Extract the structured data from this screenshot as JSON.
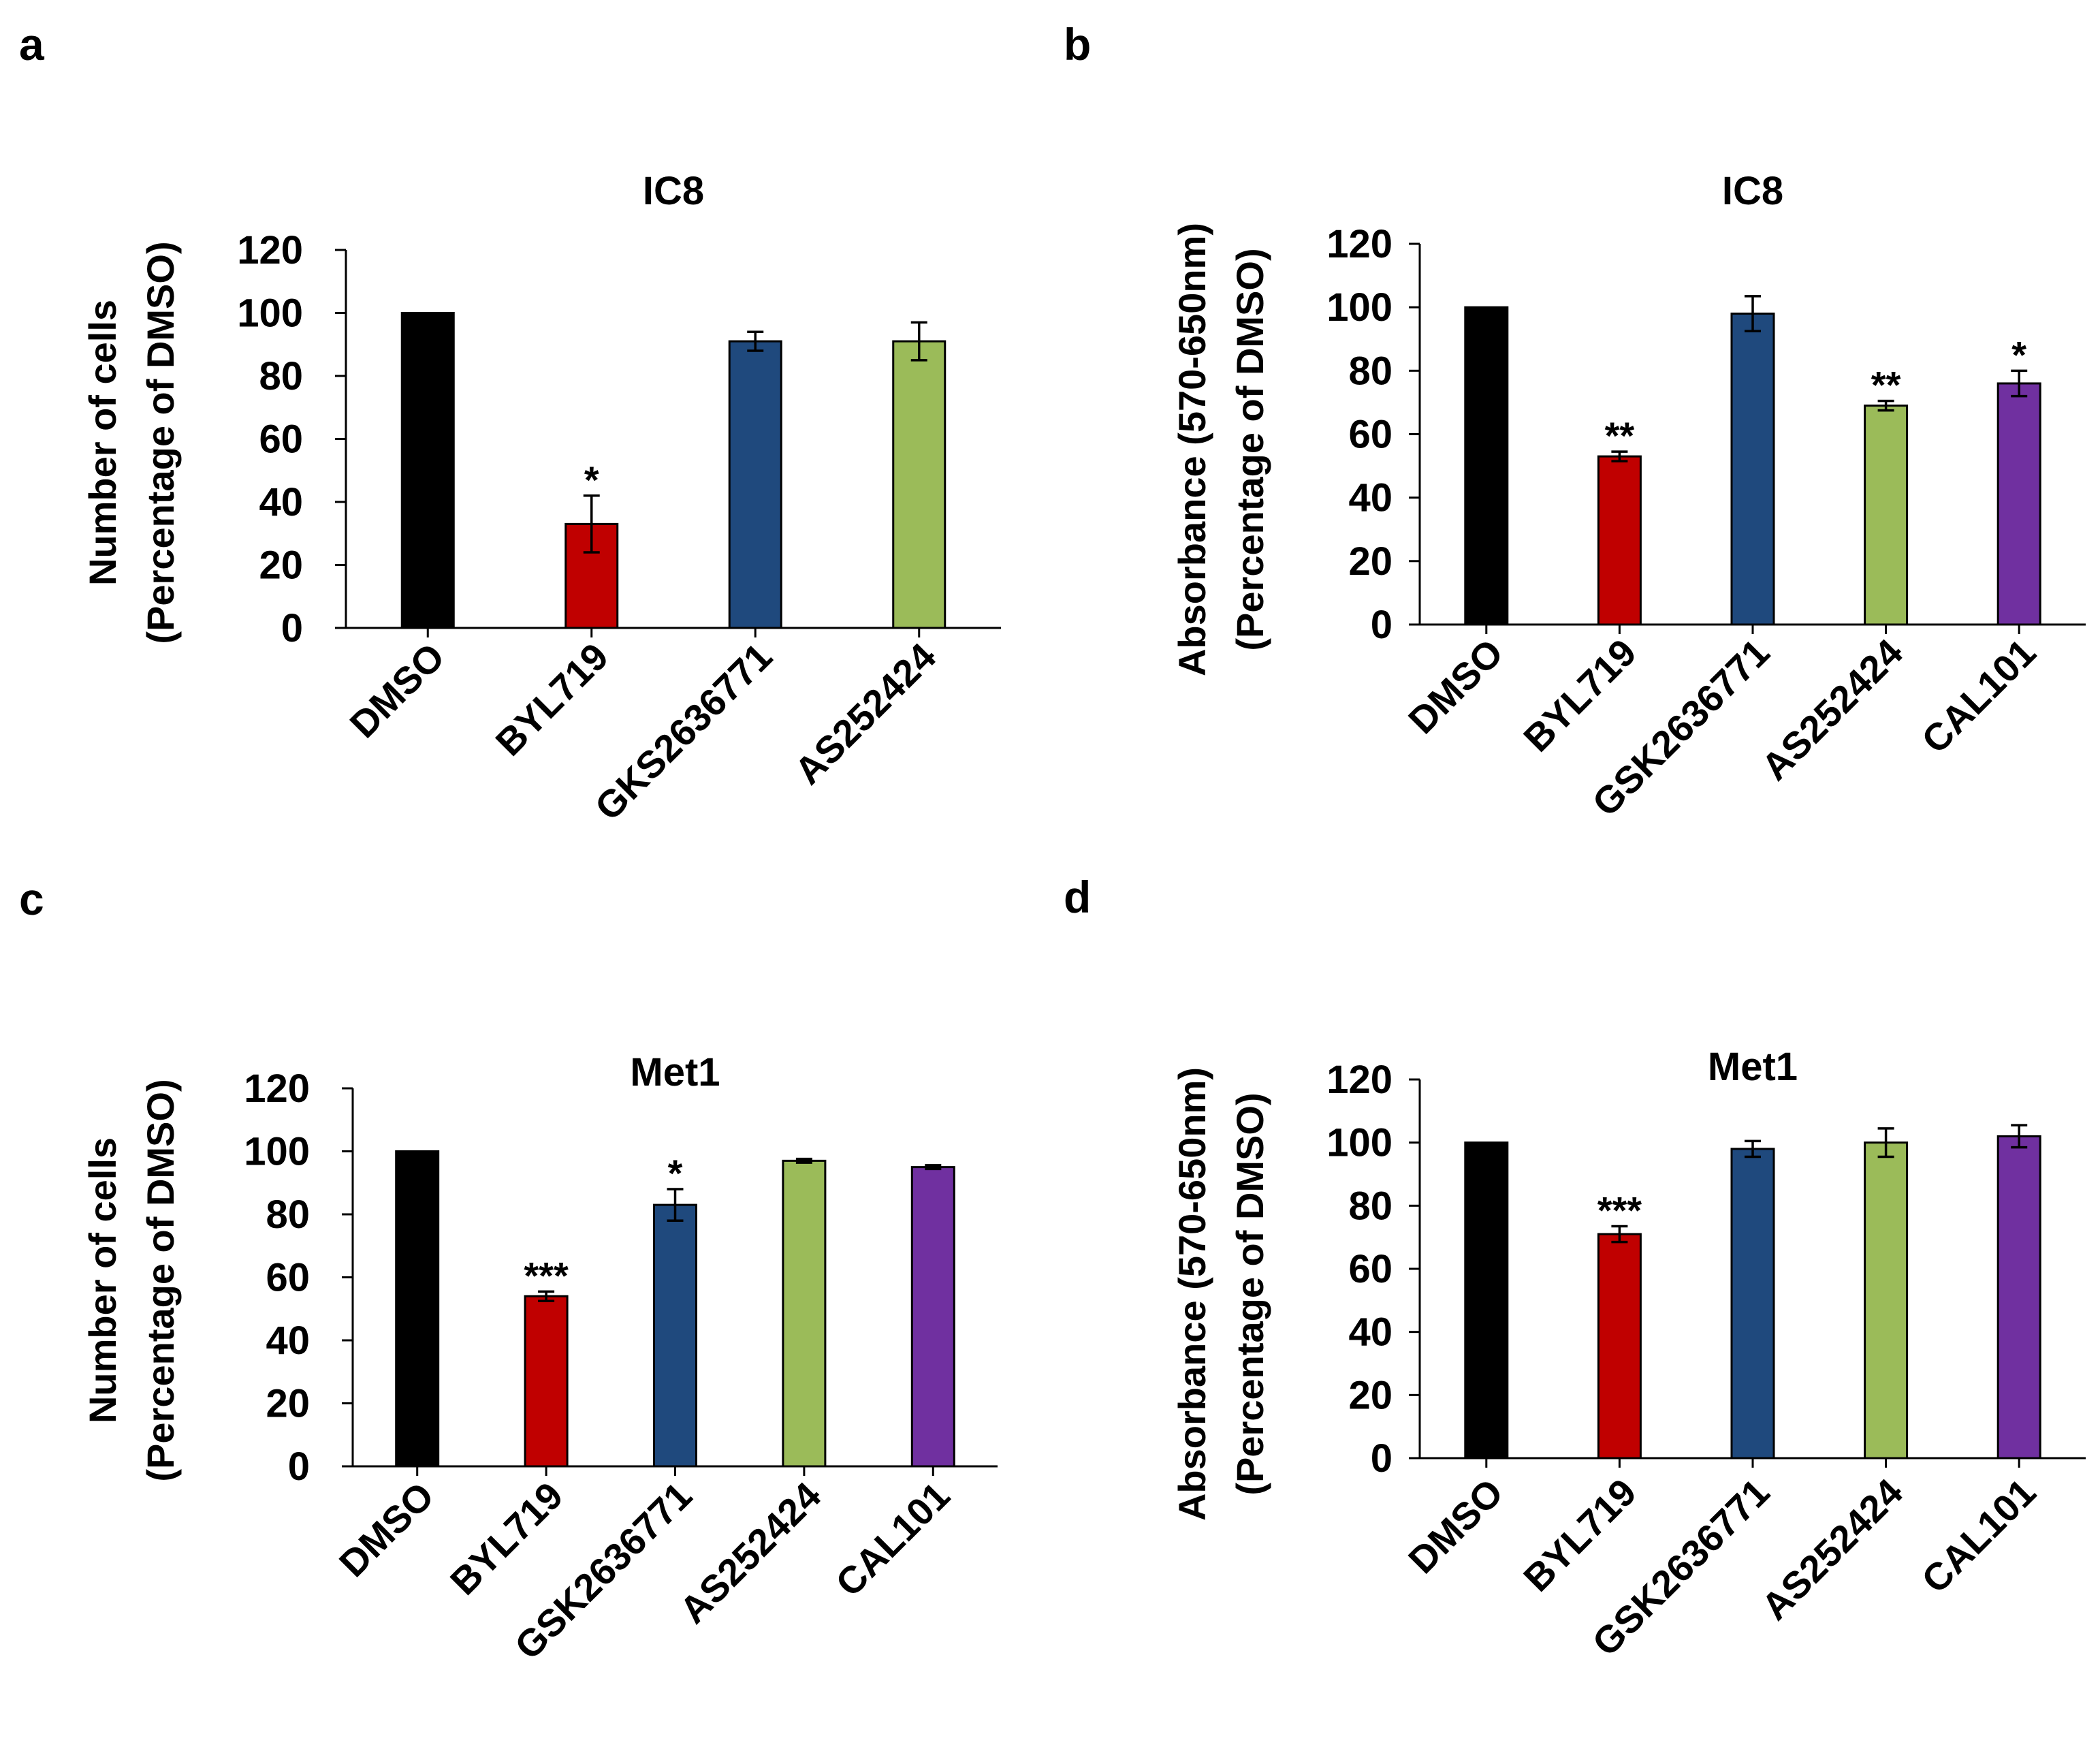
{
  "chart_data": [
    {
      "panel": "a",
      "type": "bar",
      "title": "IC8",
      "ylabel": [
        "Number of cells",
        "(Percentage of DMSO)"
      ],
      "xlabel": "",
      "ylim": [
        0,
        120
      ],
      "yticks": [
        "0",
        "20",
        "40",
        "60",
        "80",
        "100",
        "120"
      ],
      "categories": [
        "DMSO",
        "BYL719",
        "GKS2636771",
        "AS252424"
      ],
      "values": [
        100,
        33,
        91,
        91
      ],
      "errors": [
        0,
        9,
        3,
        6
      ],
      "significance": [
        "",
        "*",
        "",
        ""
      ],
      "colors": [
        "#000000",
        "#c00000",
        "#1f497d",
        "#9bbb59"
      ]
    },
    {
      "panel": "b",
      "type": "bar",
      "title": "IC8",
      "ylabel": [
        "Absorbance (570-650nm)",
        "(Percentage of DMSO)"
      ],
      "xlabel": "",
      "ylim": [
        0,
        120
      ],
      "yticks": [
        "0",
        "20",
        "40",
        "60",
        "80",
        "100",
        "120"
      ],
      "categories": [
        "DMSO",
        "BYL719",
        "GSK2636771",
        "AS252424",
        "CAL101"
      ],
      "values": [
        100,
        53,
        98,
        69,
        76
      ],
      "errors": [
        0,
        1.5,
        5.5,
        1.5,
        4
      ],
      "significance": [
        "",
        "**",
        "",
        "**",
        "*"
      ],
      "colors": [
        "#000000",
        "#c00000",
        "#1f497d",
        "#9bbb59",
        "#7030a0"
      ]
    },
    {
      "panel": "c",
      "type": "bar",
      "title": "Met1",
      "ylabel": [
        "Number of cells",
        "(Percentage of DMSO)"
      ],
      "xlabel": "",
      "ylim": [
        0,
        120
      ],
      "yticks": [
        "0",
        "20",
        "40",
        "60",
        "80",
        "100",
        "120"
      ],
      "categories": [
        "DMSO",
        "BYL719",
        "GSK2636771",
        "AS252424",
        "CAL101"
      ],
      "values": [
        100,
        54,
        83,
        97,
        95
      ],
      "errors": [
        0,
        1.5,
        5,
        0.6,
        0.6
      ],
      "significance": [
        "",
        "***",
        "*",
        "",
        ""
      ],
      "colors": [
        "#000000",
        "#c00000",
        "#1f497d",
        "#9bbb59",
        "#7030a0"
      ]
    },
    {
      "panel": "d",
      "type": "bar",
      "title": "Met1",
      "ylabel": [
        "Absorbance (570-650nm)",
        "(Percentage of DMSO)"
      ],
      "xlabel": "",
      "ylim": [
        0,
        120
      ],
      "yticks": [
        "0",
        "20",
        "40",
        "60",
        "80",
        "100",
        "120"
      ],
      "categories": [
        "DMSO",
        "BYL719",
        "GSK2636771",
        "AS252424",
        "CAL101"
      ],
      "values": [
        100,
        71,
        98,
        100,
        102
      ],
      "errors": [
        0,
        2.5,
        2.5,
        4.5,
        3.5
      ],
      "significance": [
        "",
        "***",
        "",
        "",
        ""
      ],
      "colors": [
        "#000000",
        "#c00000",
        "#1f497d",
        "#9bbb59",
        "#7030a0"
      ]
    }
  ]
}
